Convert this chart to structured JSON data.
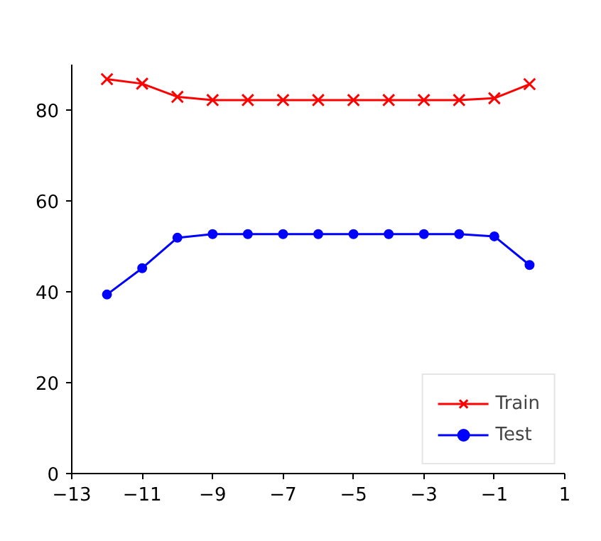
{
  "chart_data": {
    "type": "line",
    "x": [
      -12,
      -11,
      -10,
      -9,
      -8,
      -7,
      -6,
      -5,
      -4,
      -3,
      -2,
      -1,
      0
    ],
    "series": [
      {
        "name": "Train",
        "color": "#ff0000",
        "marker": "cross",
        "values": [
          86.8,
          85.8,
          82.9,
          82.2,
          82.2,
          82.2,
          82.2,
          82.2,
          82.2,
          82.2,
          82.2,
          82.6,
          85.7
        ]
      },
      {
        "name": "Test",
        "color": "#0000ff",
        "marker": "circle",
        "values": [
          39.4,
          45.2,
          51.9,
          52.7,
          52.7,
          52.7,
          52.7,
          52.7,
          52.7,
          52.7,
          52.7,
          52.2,
          45.9
        ]
      }
    ],
    "xlim": [
      -13,
      1
    ],
    "xticks": [
      {
        "value": -13,
        "label": "−13"
      },
      {
        "value": -11,
        "label": "−11"
      },
      {
        "value": -9,
        "label": "−9"
      },
      {
        "value": -7,
        "label": "−7"
      },
      {
        "value": -5,
        "label": "−5"
      },
      {
        "value": -3,
        "label": "−3"
      },
      {
        "value": -1,
        "label": "−1"
      },
      1
    ],
    "ylim": [
      0,
      90
    ],
    "yticks": [
      0,
      20,
      40,
      60,
      80
    ],
    "grid": false,
    "legend": "bottom right"
  }
}
